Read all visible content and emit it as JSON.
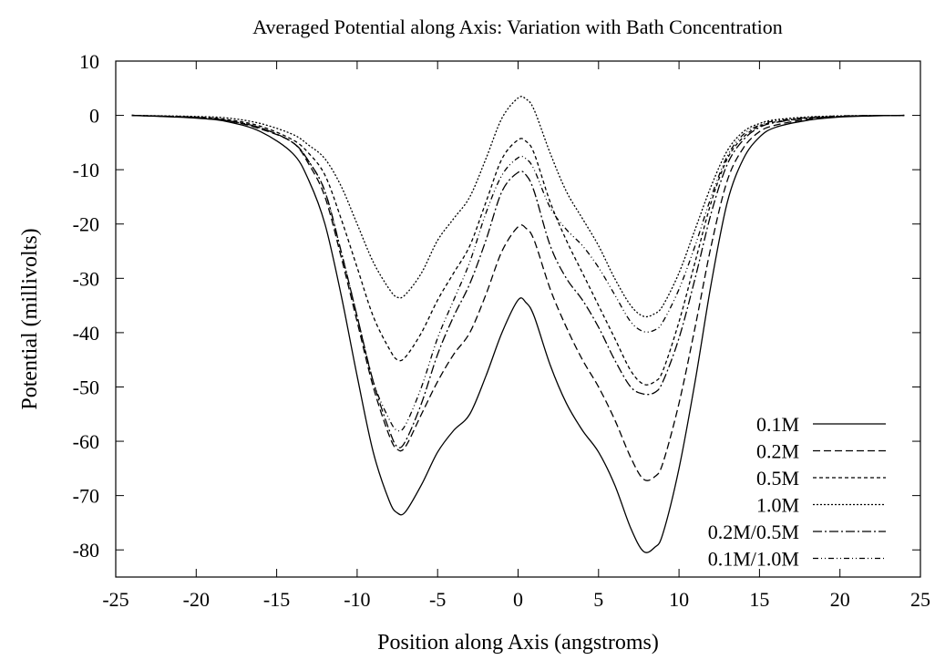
{
  "chart_data": {
    "type": "line",
    "title": "Averaged Potential along Axis: Variation with Bath Concentration",
    "xlabel": "Position along Axis (angstroms)",
    "ylabel": "Potential (millivolts)",
    "xlim": [
      -25,
      25
    ],
    "ylim": [
      -85,
      10
    ],
    "x_ticks": [
      -25,
      -20,
      -15,
      -10,
      -5,
      0,
      5,
      10,
      15,
      20,
      25
    ],
    "y_ticks": [
      10,
      0,
      -10,
      -20,
      -30,
      -40,
      -50,
      -60,
      -70,
      -80
    ],
    "x_tick_labels": [
      "-25",
      "-20",
      "-15",
      "-10",
      "-5",
      "0",
      "5",
      "10",
      "15",
      "20",
      "25"
    ],
    "y_tick_labels": [
      "10",
      "0",
      "-10",
      "-20",
      "-30",
      "-40",
      "-50",
      "-60",
      "-70",
      "-80"
    ],
    "grid": false,
    "legend_position": "bottom-right",
    "series": [
      {
        "name": "0.1M",
        "dash": "solid",
        "points": [
          [
            -24,
            0
          ],
          [
            -20,
            -0.5
          ],
          [
            -18,
            -1.2
          ],
          [
            -16,
            -3
          ],
          [
            -14,
            -7
          ],
          [
            -13,
            -12
          ],
          [
            -12,
            -20
          ],
          [
            -11,
            -33
          ],
          [
            -10,
            -48
          ],
          [
            -9,
            -62
          ],
          [
            -8,
            -71
          ],
          [
            -7.5,
            -73.2
          ],
          [
            -7,
            -73
          ],
          [
            -6,
            -68
          ],
          [
            -5,
            -62
          ],
          [
            -4,
            -58
          ],
          [
            -3,
            -55
          ],
          [
            -2,
            -48
          ],
          [
            -1,
            -40
          ],
          [
            0,
            -34
          ],
          [
            0.5,
            -34.5
          ],
          [
            1,
            -37
          ],
          [
            2,
            -46
          ],
          [
            3,
            -53
          ],
          [
            4,
            -58
          ],
          [
            5,
            -62
          ],
          [
            6,
            -68
          ],
          [
            7,
            -76
          ],
          [
            7.8,
            -80.3
          ],
          [
            8.5,
            -79.5
          ],
          [
            9,
            -77
          ],
          [
            10,
            -65
          ],
          [
            11,
            -49
          ],
          [
            12,
            -31
          ],
          [
            13,
            -16
          ],
          [
            14,
            -8
          ],
          [
            15,
            -4
          ],
          [
            16,
            -2.2
          ],
          [
            18,
            -0.9
          ],
          [
            20,
            -0.3
          ],
          [
            22,
            -0.1
          ],
          [
            24,
            0
          ]
        ]
      },
      {
        "name": "0.2M",
        "dash": "8,4",
        "points": [
          [
            -24,
            0
          ],
          [
            -20,
            -0.4
          ],
          [
            -18,
            -1
          ],
          [
            -16,
            -2.5
          ],
          [
            -14,
            -5
          ],
          [
            -13,
            -9
          ],
          [
            -12,
            -15
          ],
          [
            -11,
            -26
          ],
          [
            -10,
            -38
          ],
          [
            -9,
            -50
          ],
          [
            -8,
            -59
          ],
          [
            -7.5,
            -61.5
          ],
          [
            -7,
            -61
          ],
          [
            -6,
            -55
          ],
          [
            -5,
            -49
          ],
          [
            -4,
            -44
          ],
          [
            -3,
            -40
          ],
          [
            -2,
            -33
          ],
          [
            -1,
            -25
          ],
          [
            0,
            -20.5
          ],
          [
            0.5,
            -20.8
          ],
          [
            1,
            -23
          ],
          [
            2,
            -32
          ],
          [
            3,
            -39
          ],
          [
            4,
            -45
          ],
          [
            5,
            -50
          ],
          [
            6,
            -56
          ],
          [
            7,
            -63
          ],
          [
            7.8,
            -67
          ],
          [
            8.5,
            -66.5
          ],
          [
            9,
            -64
          ],
          [
            10,
            -53
          ],
          [
            11,
            -39
          ],
          [
            12,
            -24
          ],
          [
            13,
            -12
          ],
          [
            14,
            -6
          ],
          [
            15,
            -3
          ],
          [
            16,
            -1.8
          ],
          [
            18,
            -0.7
          ],
          [
            20,
            -0.2
          ],
          [
            22,
            -0.05
          ],
          [
            24,
            0
          ]
        ]
      },
      {
        "name": "0.5M",
        "dash": "4,3",
        "points": [
          [
            -24,
            0
          ],
          [
            -20,
            -0.3
          ],
          [
            -18,
            -0.8
          ],
          [
            -16,
            -2
          ],
          [
            -14,
            -4.5
          ],
          [
            -13,
            -7
          ],
          [
            -12,
            -11
          ],
          [
            -11,
            -19
          ],
          [
            -10,
            -28
          ],
          [
            -9,
            -37
          ],
          [
            -8,
            -43
          ],
          [
            -7.5,
            -45
          ],
          [
            -7,
            -44.5
          ],
          [
            -6,
            -40
          ],
          [
            -5,
            -34
          ],
          [
            -4,
            -29
          ],
          [
            -3,
            -24
          ],
          [
            -2,
            -16
          ],
          [
            -1,
            -8
          ],
          [
            0,
            -4.5
          ],
          [
            0.5,
            -4.8
          ],
          [
            1,
            -7
          ],
          [
            2,
            -16
          ],
          [
            3,
            -23
          ],
          [
            4,
            -29
          ],
          [
            5,
            -35
          ],
          [
            6,
            -41
          ],
          [
            7,
            -47
          ],
          [
            7.8,
            -49.5
          ],
          [
            8.5,
            -49
          ],
          [
            9,
            -47
          ],
          [
            10,
            -38
          ],
          [
            11,
            -27
          ],
          [
            12,
            -16
          ],
          [
            13,
            -8
          ],
          [
            14,
            -4
          ],
          [
            15,
            -2
          ],
          [
            16,
            -1.2
          ],
          [
            18,
            -0.5
          ],
          [
            20,
            -0.2
          ],
          [
            22,
            -0.05
          ],
          [
            24,
            0
          ]
        ]
      },
      {
        "name": "1.0M",
        "dash": "2,2",
        "points": [
          [
            -24,
            0
          ],
          [
            -20,
            -0.2
          ],
          [
            -18,
            -0.5
          ],
          [
            -16,
            -1.5
          ],
          [
            -14,
            -3.5
          ],
          [
            -13,
            -5.5
          ],
          [
            -12,
            -8
          ],
          [
            -11,
            -13
          ],
          [
            -10,
            -20
          ],
          [
            -9,
            -27
          ],
          [
            -8,
            -32
          ],
          [
            -7.5,
            -33.5
          ],
          [
            -7,
            -33
          ],
          [
            -6,
            -29
          ],
          [
            -5,
            -23
          ],
          [
            -4,
            -19
          ],
          [
            -3,
            -15
          ],
          [
            -2,
            -8
          ],
          [
            -1,
            -0.5
          ],
          [
            0,
            3.2
          ],
          [
            0.5,
            3
          ],
          [
            1,
            1
          ],
          [
            2,
            -7
          ],
          [
            3,
            -14
          ],
          [
            4,
            -19
          ],
          [
            5,
            -24
          ],
          [
            6,
            -30
          ],
          [
            7,
            -35
          ],
          [
            7.8,
            -37
          ],
          [
            8.5,
            -36.5
          ],
          [
            9,
            -35
          ],
          [
            10,
            -29
          ],
          [
            11,
            -21
          ],
          [
            12,
            -13
          ],
          [
            13,
            -6.5
          ],
          [
            14,
            -3
          ],
          [
            15,
            -1.5
          ],
          [
            16,
            -0.8
          ],
          [
            18,
            -0.3
          ],
          [
            20,
            -0.1
          ],
          [
            22,
            -0.03
          ],
          [
            24,
            0
          ]
        ]
      },
      {
        "name": "0.2M/0.5M",
        "dash": "10,3,2,3",
        "points": [
          [
            -24,
            0
          ],
          [
            -20,
            -0.4
          ],
          [
            -18,
            -1
          ],
          [
            -16,
            -2.3
          ],
          [
            -14,
            -5
          ],
          [
            -13,
            -8.5
          ],
          [
            -12,
            -14
          ],
          [
            -11,
            -25
          ],
          [
            -10,
            -37
          ],
          [
            -9,
            -49
          ],
          [
            -8,
            -58
          ],
          [
            -7.5,
            -61
          ],
          [
            -7,
            -60
          ],
          [
            -6,
            -53
          ],
          [
            -5,
            -44
          ],
          [
            -4,
            -37
          ],
          [
            -3,
            -31
          ],
          [
            -2,
            -23
          ],
          [
            -1,
            -14
          ],
          [
            0,
            -10.5
          ],
          [
            0.5,
            -11
          ],
          [
            1,
            -14
          ],
          [
            2,
            -24
          ],
          [
            3,
            -30
          ],
          [
            4,
            -34
          ],
          [
            5,
            -39
          ],
          [
            6,
            -45
          ],
          [
            7,
            -50
          ],
          [
            7.8,
            -51.3
          ],
          [
            8.5,
            -51
          ],
          [
            9,
            -49
          ],
          [
            10,
            -41
          ],
          [
            11,
            -30
          ],
          [
            12,
            -18
          ],
          [
            13,
            -9
          ],
          [
            14,
            -4.5
          ],
          [
            15,
            -2.2
          ],
          [
            16,
            -1.3
          ],
          [
            18,
            -0.5
          ],
          [
            20,
            -0.2
          ],
          [
            22,
            -0.05
          ],
          [
            24,
            0
          ]
        ]
      },
      {
        "name": "0.1M/1.0M",
        "dash": "6,3,1,3,1,3",
        "points": [
          [
            -24,
            0
          ],
          [
            -20,
            -0.4
          ],
          [
            -18,
            -1
          ],
          [
            -16,
            -2.3
          ],
          [
            -14,
            -5
          ],
          [
            -13,
            -8.5
          ],
          [
            -12,
            -14
          ],
          [
            -11,
            -25
          ],
          [
            -10,
            -37
          ],
          [
            -9,
            -49
          ],
          [
            -8,
            -56
          ],
          [
            -7.5,
            -58
          ],
          [
            -7,
            -57
          ],
          [
            -6,
            -50
          ],
          [
            -5,
            -41
          ],
          [
            -4,
            -34
          ],
          [
            -3,
            -27
          ],
          [
            -2,
            -18
          ],
          [
            -1,
            -11
          ],
          [
            0,
            -7.8
          ],
          [
            0.5,
            -8
          ],
          [
            1,
            -10
          ],
          [
            2,
            -17
          ],
          [
            3,
            -21
          ],
          [
            4,
            -24
          ],
          [
            5,
            -28
          ],
          [
            6,
            -33
          ],
          [
            7,
            -38
          ],
          [
            7.8,
            -39.8
          ],
          [
            8.5,
            -39.5
          ],
          [
            9,
            -38
          ],
          [
            10,
            -32
          ],
          [
            11,
            -24
          ],
          [
            12,
            -15
          ],
          [
            13,
            -7.5
          ],
          [
            14,
            -3.5
          ],
          [
            15,
            -1.8
          ],
          [
            16,
            -1
          ],
          [
            18,
            -0.4
          ],
          [
            20,
            -0.1
          ],
          [
            22,
            -0.03
          ],
          [
            24,
            0
          ]
        ]
      }
    ]
  }
}
